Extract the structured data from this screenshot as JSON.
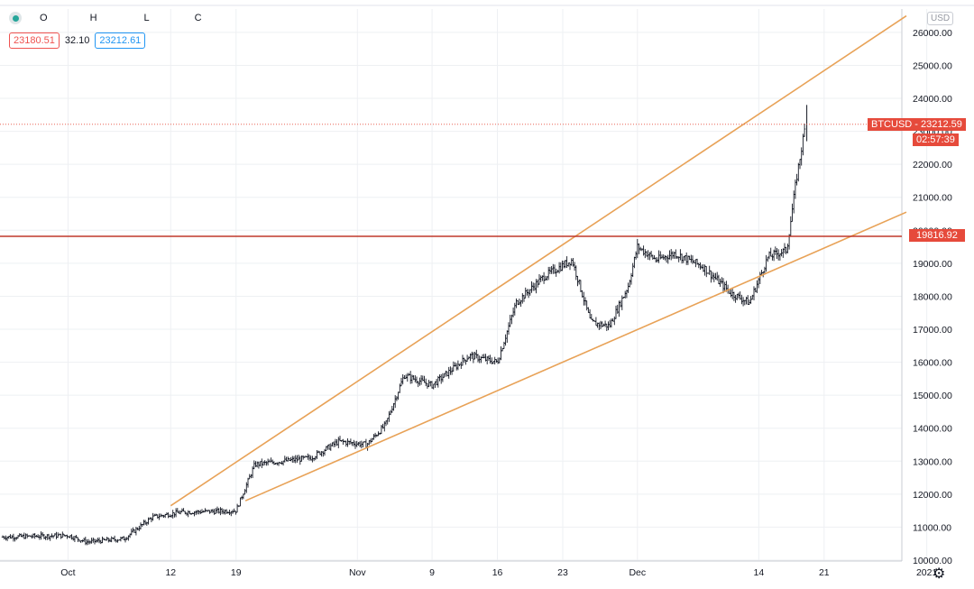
{
  "legend": {
    "o_label": "O",
    "h_label": "H",
    "l_label": "L",
    "c_label": "C",
    "last_price": "23180.51",
    "change": "32.10",
    "ask_price": "23212.61"
  },
  "currency": "USD",
  "symbol_tag": "BTCUSD",
  "symbol_price": "23212.59",
  "countdown": "02:57:39",
  "level_tag": "19816.92",
  "colors": {
    "candles": "#131722",
    "trendlines": "#e8a257",
    "level_line": "#c0392b",
    "price_line": "#e64a3b",
    "tag_bg": "#e64a3b"
  },
  "chart_data": {
    "type": "line",
    "title": "",
    "xlabel": "",
    "ylabel": "",
    "series_name": "BTCUSD",
    "x_start": "2020-09-24",
    "x_tick_labels": [
      "Oct",
      "12",
      "19",
      "Nov",
      "9",
      "16",
      "23",
      "Dec",
      "14",
      "21",
      "2021"
    ],
    "y_tick_labels": [
      "10000.00",
      "11000.00",
      "12000.00",
      "13000.00",
      "14000.00",
      "15000.00",
      "16000.00",
      "17000.00",
      "18000.00",
      "19000.00",
      "20000.00",
      "21000.00",
      "22000.00",
      "23000.00",
      "24000.00",
      "25000.00",
      "26000.00"
    ],
    "ylim": [
      10000,
      26500
    ],
    "grid": true,
    "horizontal_level": 19816.92,
    "last_price": 23212.59,
    "trendlines": [
      {
        "name": "upper",
        "from": {
          "x": "2020-10-12",
          "y": 11650
        },
        "to": {
          "x": "2021-01-02",
          "y": 26500
        }
      },
      {
        "name": "lower",
        "from": {
          "x": "2020-10-20",
          "y": 11800
        },
        "to": {
          "x": "2021-01-02",
          "y": 20550
        }
      }
    ],
    "price_anchors": [
      {
        "x": "2020-09-24",
        "y": 10700
      },
      {
        "x": "2020-10-01",
        "y": 10750
      },
      {
        "x": "2020-10-03",
        "y": 10550
      },
      {
        "x": "2020-10-07",
        "y": 10650
      },
      {
        "x": "2020-10-10",
        "y": 11300
      },
      {
        "x": "2020-10-13",
        "y": 11450
      },
      {
        "x": "2020-10-19",
        "y": 11500
      },
      {
        "x": "2020-10-21",
        "y": 12900
      },
      {
        "x": "2020-10-27",
        "y": 13100
      },
      {
        "x": "2020-10-30",
        "y": 13600
      },
      {
        "x": "2020-11-02",
        "y": 13500
      },
      {
        "x": "2020-11-04",
        "y": 14100
      },
      {
        "x": "2020-11-06",
        "y": 15600
      },
      {
        "x": "2020-11-09",
        "y": 15300
      },
      {
        "x": "2020-11-13",
        "y": 16200
      },
      {
        "x": "2020-11-16",
        "y": 16000
      },
      {
        "x": "2020-11-18",
        "y": 17800
      },
      {
        "x": "2020-11-21",
        "y": 18600
      },
      {
        "x": "2020-11-24",
        "y": 19100
      },
      {
        "x": "2020-11-26",
        "y": 17200
      },
      {
        "x": "2020-11-28",
        "y": 17100
      },
      {
        "x": "2020-11-30",
        "y": 18300
      },
      {
        "x": "2020-12-01",
        "y": 19500
      },
      {
        "x": "2020-12-03",
        "y": 19100
      },
      {
        "x": "2020-12-05",
        "y": 19300
      },
      {
        "x": "2020-12-08",
        "y": 18900
      },
      {
        "x": "2020-12-11",
        "y": 18100
      },
      {
        "x": "2020-12-13",
        "y": 17800
      },
      {
        "x": "2020-12-15",
        "y": 19200
      },
      {
        "x": "2020-12-17",
        "y": 19400
      },
      {
        "x": "2020-12-18",
        "y": 21500
      },
      {
        "x": "2020-12-19",
        "y": 23200
      }
    ]
  }
}
